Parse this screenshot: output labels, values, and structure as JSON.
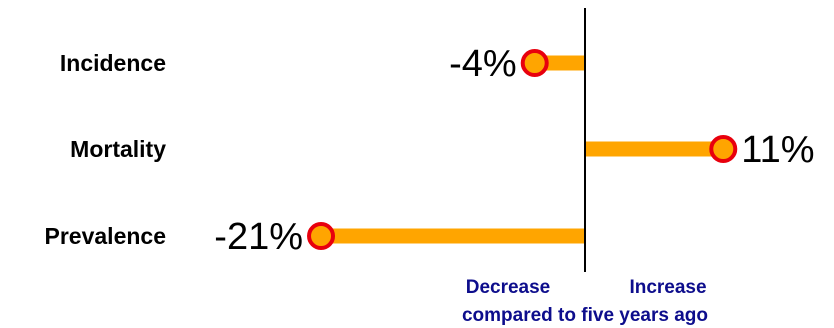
{
  "chart_data": {
    "type": "bar",
    "orientation": "horizontal",
    "style": "lollipop",
    "categories": [
      "Incidence",
      "Mortality",
      "Prevalence"
    ],
    "values": [
      -4,
      11,
      -21
    ],
    "value_labels": [
      "-4%",
      "11%",
      "-21%"
    ],
    "xlim": [
      -21,
      11
    ],
    "decrease_label": "Decrease",
    "increase_label": "Increase",
    "xlabel": "compared to five years ago",
    "grid": false,
    "colors": {
      "bar": "#ffa500",
      "marker_fill": "#ffa500",
      "marker_stroke": "#e8000d",
      "zero_line": "#000000",
      "direction_text": "#0d0d8c"
    }
  }
}
